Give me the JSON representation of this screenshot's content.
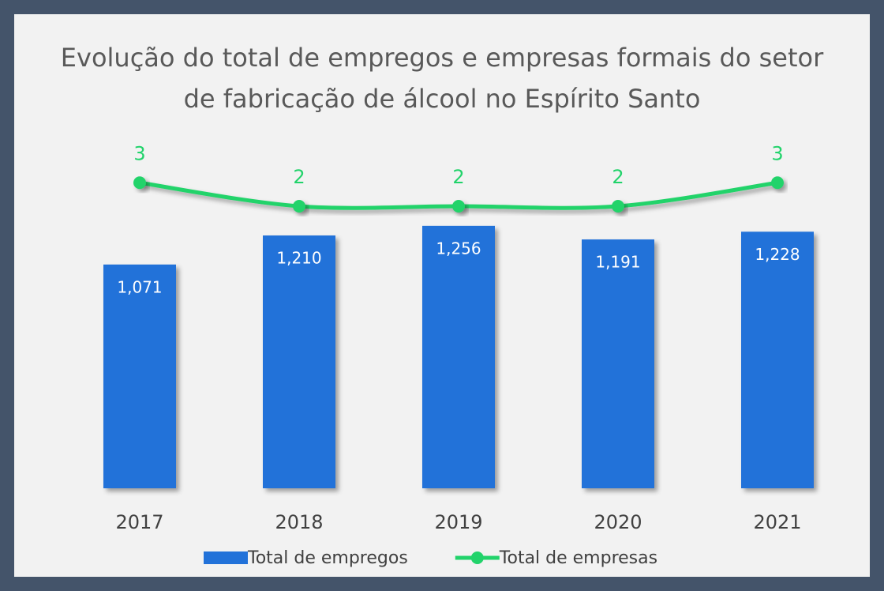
{
  "chart_data": {
    "type": "bar_line",
    "title": "Evolução do total de empregos e empresas formais do setor de fabricação de álcool no Espírito Santo",
    "categories": [
      "2017",
      "2018",
      "2019",
      "2020",
      "2021"
    ],
    "series": [
      {
        "name": "Total de empregos",
        "type": "bar",
        "color": "#2272d9",
        "axis": "y",
        "values": [
          1071,
          1210,
          1256,
          1191,
          1228
        ],
        "value_labels": [
          "1,071",
          "1,210",
          "1,256",
          "1,191",
          "1,228"
        ]
      },
      {
        "name": "Total de empresas",
        "type": "line",
        "color": "#22d36b",
        "axis": "y2",
        "smooth": true,
        "values": [
          3,
          2,
          2,
          2,
          3
        ]
      }
    ],
    "ylim": [
      0,
      1800
    ],
    "y2lim": [
      -10,
      6
    ],
    "legend": "bottom"
  }
}
